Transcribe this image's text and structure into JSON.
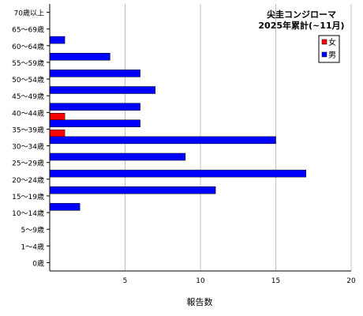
{
  "chart_data": {
    "type": "bar",
    "orientation": "horizontal",
    "title": "尖圭コンジローマ",
    "subtitle": "2025年累計(~11月)",
    "xlabel": "報告数",
    "ylabel": "",
    "xlim": [
      0,
      20
    ],
    "xticks": [
      5,
      10,
      15,
      20
    ],
    "grid": true,
    "legend_position": "top-right",
    "categories": [
      "70歳以上",
      "65～69歳",
      "60～64歳",
      "55～59歳",
      "50～54歳",
      "45～49歳",
      "40～44歳",
      "35～39歳",
      "30～34歳",
      "25～29歳",
      "20～24歳",
      "15～19歳",
      "10～14歳",
      "5～9歳",
      "1～4歳",
      "0歳"
    ],
    "series": [
      {
        "name": "女",
        "color": "#ff0000",
        "values": [
          0,
          0,
          0,
          0,
          0,
          0,
          1,
          1,
          0,
          0,
          0,
          0,
          0,
          0,
          0,
          0
        ]
      },
      {
        "name": "男",
        "color": "#0000ff",
        "values": [
          0,
          1,
          4,
          6,
          7,
          6,
          6,
          15,
          9,
          17,
          11,
          2,
          0,
          0,
          0,
          0
        ]
      }
    ]
  }
}
